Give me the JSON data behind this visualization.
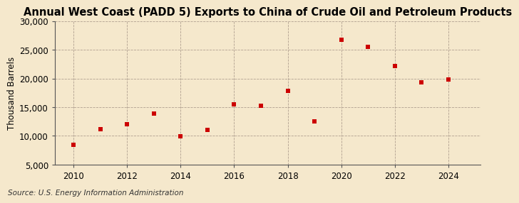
{
  "title": "Annual West Coast (PADD 5) Exports to China of Crude Oil and Petroleum Products",
  "ylabel": "Thousand Barrels",
  "source": "Source: U.S. Energy Information Administration",
  "background_color": "#f5e8cc",
  "plot_background_color": "#f5e8cc",
  "years": [
    2010,
    2011,
    2012,
    2013,
    2014,
    2015,
    2016,
    2017,
    2018,
    2019,
    2020,
    2021,
    2022,
    2023,
    2024
  ],
  "values": [
    8400,
    11200,
    12000,
    13900,
    9900,
    11100,
    15500,
    15200,
    17800,
    12500,
    26700,
    25500,
    22200,
    19300,
    19800
  ],
  "marker_color": "#cc0000",
  "marker_size": 25,
  "ylim": [
    5000,
    30000
  ],
  "yticks": [
    5000,
    10000,
    15000,
    20000,
    25000,
    30000
  ],
  "xticks": [
    2010,
    2012,
    2014,
    2016,
    2018,
    2020,
    2022,
    2024
  ],
  "xlim": [
    2009.3,
    2025.2
  ],
  "title_fontsize": 10.5,
  "axis_fontsize": 8.5,
  "source_fontsize": 7.5,
  "grid_color": "#b0a090",
  "spine_color": "#555555"
}
